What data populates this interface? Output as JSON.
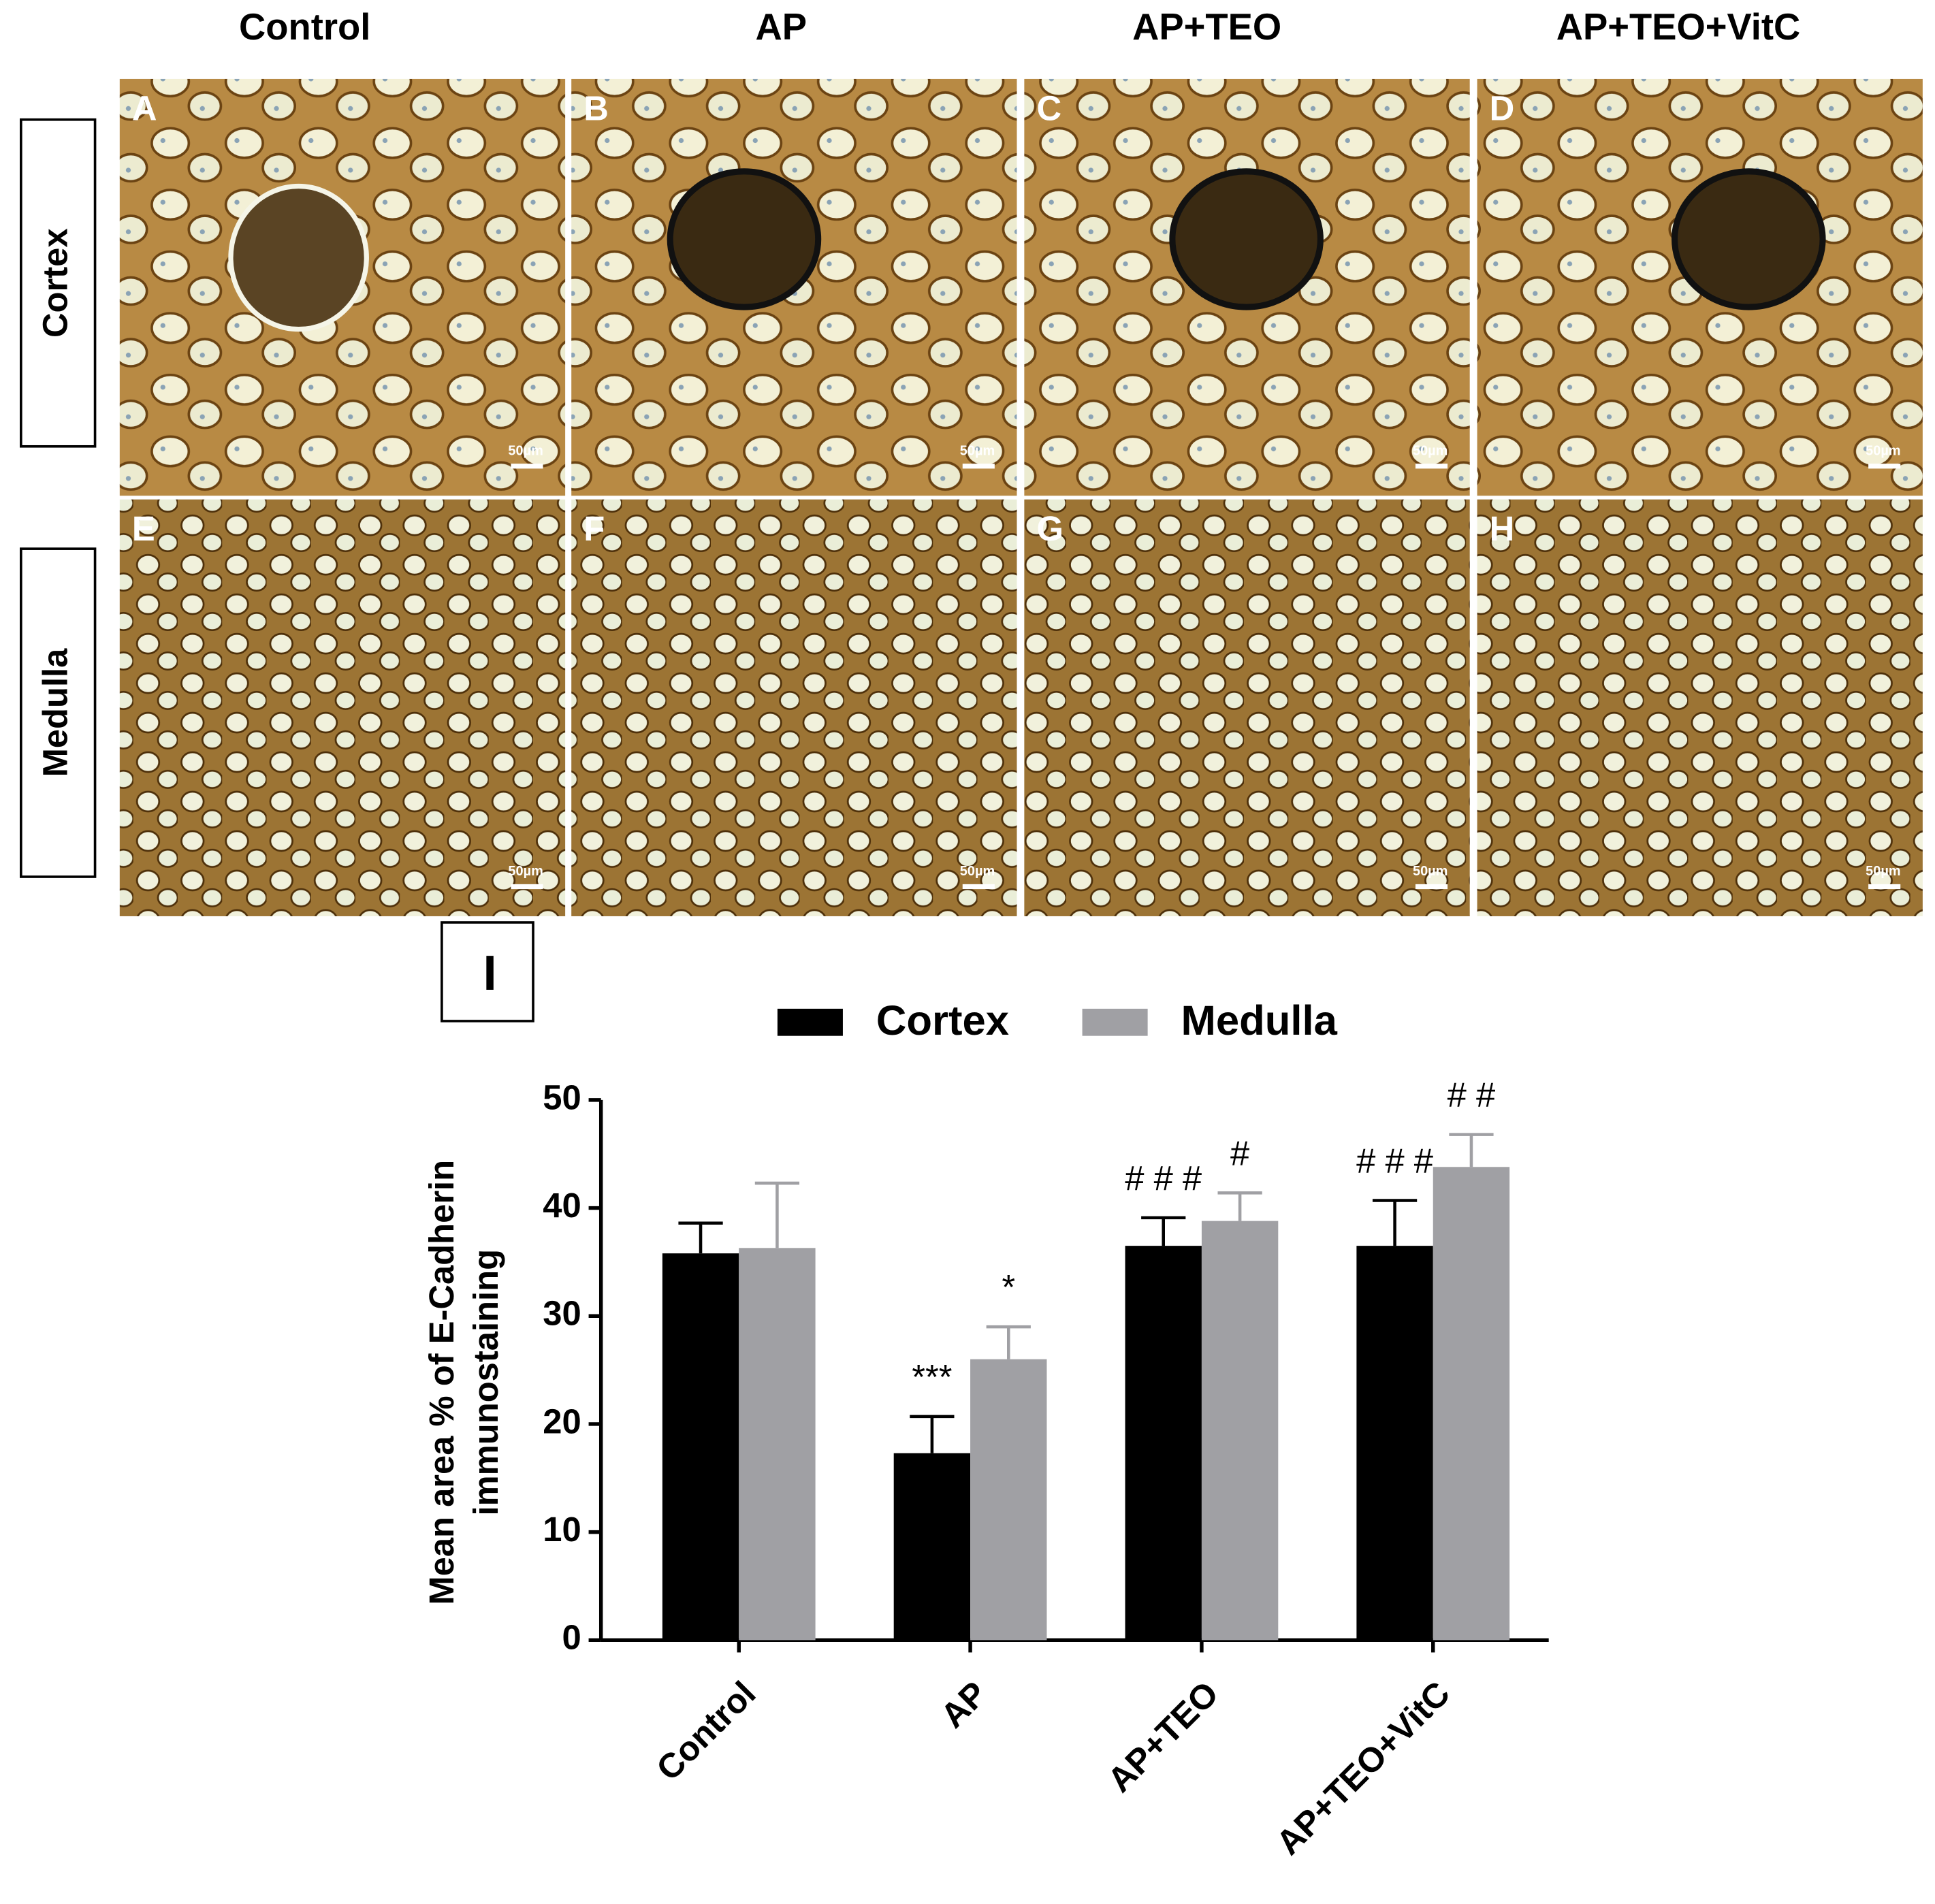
{
  "figure": {
    "column_headers": [
      "Control",
      "AP",
      "AP+TEO",
      "AP+TEO+VitC"
    ],
    "row_labels": [
      "Cortex",
      "Medulla"
    ],
    "panels": [
      {
        "letter": "A",
        "scale": "50µm"
      },
      {
        "letter": "B",
        "scale": "50µm"
      },
      {
        "letter": "C",
        "scale": "50µm"
      },
      {
        "letter": "D",
        "scale": "50µm"
      },
      {
        "letter": "E",
        "scale": "50µm"
      },
      {
        "letter": "F",
        "scale": "50µm"
      },
      {
        "letter": "G",
        "scale": "50µm"
      },
      {
        "letter": "H",
        "scale": "50µm"
      }
    ],
    "chart_label": "I"
  },
  "chart_data": {
    "type": "bar",
    "ylabel": [
      "Mean area % of E-Cadherin",
      "immunostaining"
    ],
    "categories": [
      "Control",
      "AP",
      "AP+TEO",
      "AP+TEO+VitC"
    ],
    "series": [
      {
        "name": "Cortex",
        "color": "#000000",
        "values": [
          35.8,
          17.3,
          36.5,
          36.5
        ],
        "errors": [
          2.8,
          3.4,
          2.6,
          4.2
        ],
        "annotations": [
          null,
          "***",
          "# # #",
          "# # #"
        ]
      },
      {
        "name": "Medulla",
        "color": "#a0a0a4",
        "values": [
          36.3,
          26,
          38.8,
          43.8
        ],
        "errors": [
          6,
          3,
          2.6,
          3
        ],
        "annotations": [
          null,
          "*",
          "#",
          "# #"
        ]
      }
    ],
    "ylim": [
      0,
      50
    ],
    "yticks": [
      0,
      10,
      20,
      30,
      40,
      50
    ],
    "legend": "top",
    "grid": false
  }
}
